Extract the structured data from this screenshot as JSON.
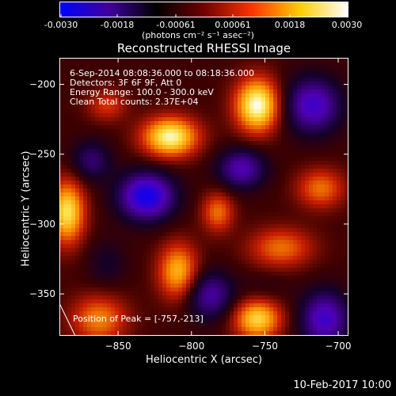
{
  "colorbar": {
    "ticks": [
      "-0.0030",
      "-0.0018",
      "-0.00061",
      "0.00061",
      "0.0018",
      "0.0030"
    ],
    "units": "(photons cm⁻² s⁻¹ asec⁻²)",
    "colors": [
      "#0000ff",
      "#4000a0",
      "#000000",
      "#700000",
      "#ff3300",
      "#ffcc00",
      "#ffffff"
    ]
  },
  "chart_data": {
    "type": "heatmap",
    "title": "Reconstructed RHESSI Image",
    "xlabel": "Heliocentric X (arcsec)",
    "ylabel": "Heliocentric Y (arcsec)",
    "xlim": [
      -890,
      -693
    ],
    "ylim": [
      -380,
      -181
    ],
    "x_ticks": [
      -850,
      -800,
      -750,
      -700
    ],
    "y_ticks": [
      -200,
      -250,
      -300,
      -350
    ],
    "colorbar_range": [
      -0.003,
      0.003
    ],
    "annotations": [
      "6-Sep-2014 08:08:36.000 to 08:18:36.000",
      "Detectors: 3F 6F 9F, Att 0",
      "Energy Range: 100.0 - 300.0 keV",
      "Clean     Total counts: 2.37E+04"
    ],
    "peak_label": "Position of Peak = [-757,-213]",
    "peak": [
      -757,
      -213
    ]
  },
  "footer": {
    "timestamp": "10-Feb-2017 10:00"
  }
}
